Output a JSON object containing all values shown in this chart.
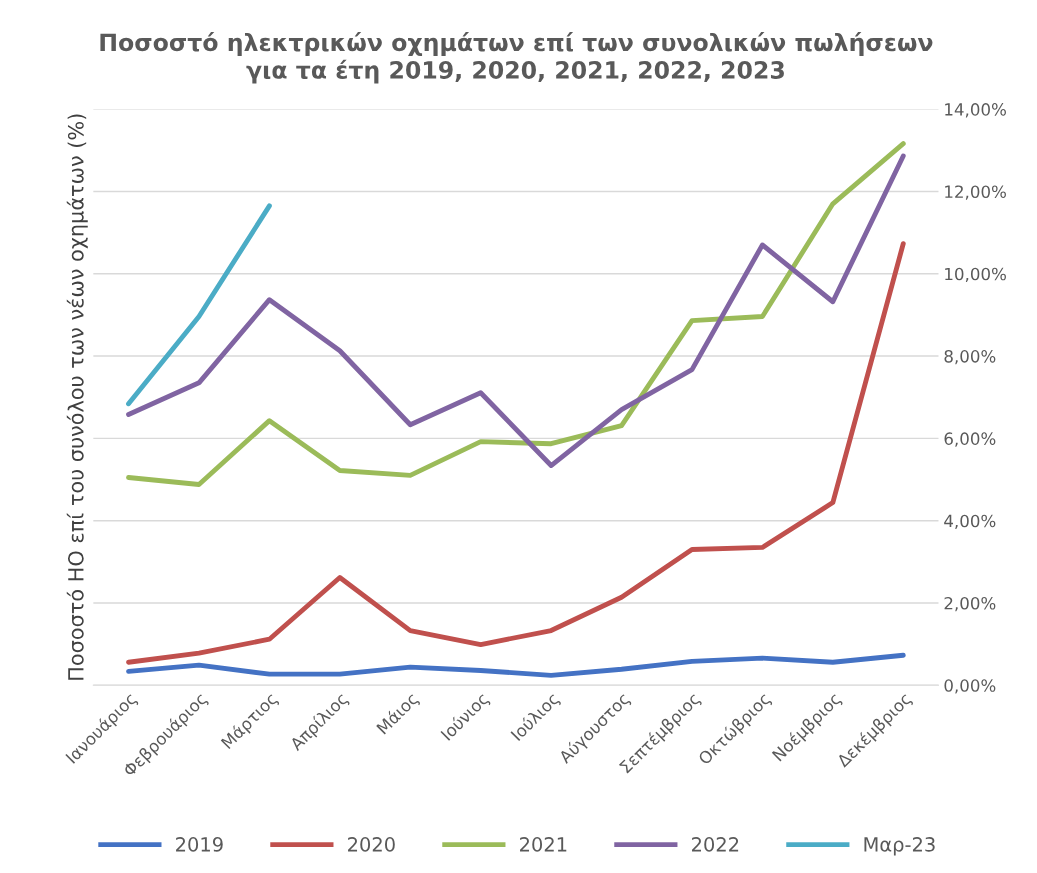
{
  "chart_data": {
    "type": "line",
    "title": "Ποσοστό ηλεκτρικών οχημάτων επί των συνολικών πωλήσεων\nγια τα έτη 2019, 2020, 2021, 2022, 2023",
    "ylabel": "Ποσοστό ΗΟ επί του συνόλου των νέων οχημάτων (%)",
    "categories": [
      "Ιανουάριος",
      "Φεβρουάριος",
      "Μάρτιος",
      "Απρίλιος",
      "Μάιος",
      "Ιούνιος",
      "Ιούλιος",
      "Αύγουστος",
      "Σεπτέμβριος",
      "Οκτώβριος",
      "Νοέμβριος",
      "Δεκέμβριος"
    ],
    "series": [
      {
        "name": "2019",
        "color": "#4472c4",
        "values": [
          0.34,
          0.49,
          0.27,
          0.27,
          0.44,
          0.36,
          0.24,
          0.39,
          0.58,
          0.66,
          0.56,
          0.73
        ]
      },
      {
        "name": "2020",
        "color": "#c0504d",
        "values": [
          0.56,
          0.78,
          1.12,
          2.62,
          1.33,
          0.99,
          1.33,
          2.14,
          3.3,
          3.35,
          4.44,
          10.73
        ]
      },
      {
        "name": "2021",
        "color": "#9bbb59",
        "values": [
          5.05,
          4.88,
          6.43,
          5.22,
          5.1,
          5.92,
          5.87,
          6.31,
          8.86,
          8.96,
          11.7,
          13.16
        ]
      },
      {
        "name": "2022",
        "color": "#8064a2",
        "values": [
          6.58,
          7.35,
          9.37,
          8.13,
          6.33,
          7.11,
          5.34,
          6.7,
          7.67,
          10.7,
          9.32,
          12.86
        ]
      },
      {
        "name": "Μαρ-23",
        "color": "#4bacc6",
        "values": [
          6.84,
          8.96,
          11.65,
          null,
          null,
          null,
          null,
          null,
          null,
          null,
          null,
          null
        ]
      }
    ],
    "ylim": [
      0,
      14
    ],
    "yticks": [
      {
        "value": 0,
        "label": "0,00%"
      },
      {
        "value": 2,
        "label": "2,00%"
      },
      {
        "value": 4,
        "label": "4,00%"
      },
      {
        "value": 6,
        "label": "6,00%"
      },
      {
        "value": 8,
        "label": "8,00%"
      },
      {
        "value": 10,
        "label": "10,00%"
      },
      {
        "value": 12,
        "label": "12,00%"
      },
      {
        "value": 14,
        "label": "14,00%"
      }
    ],
    "grid": "y",
    "legend": "bottom",
    "marker": "none",
    "line_style": "solid"
  }
}
